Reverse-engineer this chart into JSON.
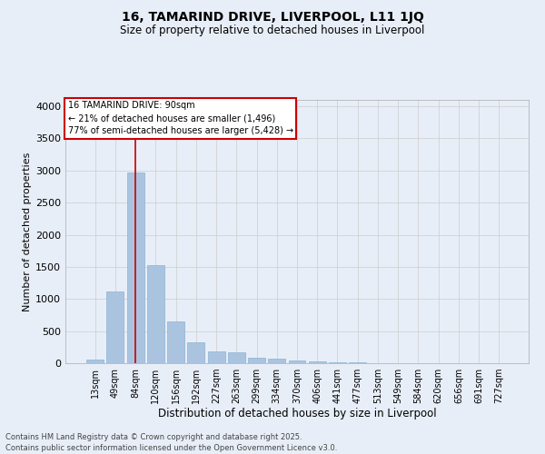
{
  "title1": "16, TAMARIND DRIVE, LIVERPOOL, L11 1JQ",
  "title2": "Size of property relative to detached houses in Liverpool",
  "xlabel": "Distribution of detached houses by size in Liverpool",
  "ylabel": "Number of detached properties",
  "categories": [
    "13sqm",
    "49sqm",
    "84sqm",
    "120sqm",
    "156sqm",
    "192sqm",
    "227sqm",
    "263sqm",
    "299sqm",
    "334sqm",
    "370sqm",
    "406sqm",
    "441sqm",
    "477sqm",
    "513sqm",
    "549sqm",
    "584sqm",
    "620sqm",
    "656sqm",
    "691sqm",
    "727sqm"
  ],
  "values": [
    55,
    1110,
    2970,
    1530,
    650,
    330,
    185,
    175,
    85,
    65,
    45,
    30,
    10,
    10,
    5,
    5,
    5,
    0,
    0,
    0,
    0
  ],
  "bar_color": "#aac4e0",
  "bar_edge_color": "#8ab4d4",
  "vline_x": 2,
  "vline_color": "#cc0000",
  "annotation_title": "16 TAMARIND DRIVE: 90sqm",
  "annotation_line1": "← 21% of detached houses are smaller (1,496)",
  "annotation_line2": "77% of semi-detached houses are larger (5,428) →",
  "annotation_box_facecolor": "#ffffff",
  "annotation_box_edgecolor": "#cc0000",
  "ylim": [
    0,
    4100
  ],
  "yticks": [
    0,
    500,
    1000,
    1500,
    2000,
    2500,
    3000,
    3500,
    4000
  ],
  "grid_color": "#cccccc",
  "bg_color": "#e8eef8",
  "footer1": "Contains HM Land Registry data © Crown copyright and database right 2025.",
  "footer2": "Contains public sector information licensed under the Open Government Licence v3.0."
}
